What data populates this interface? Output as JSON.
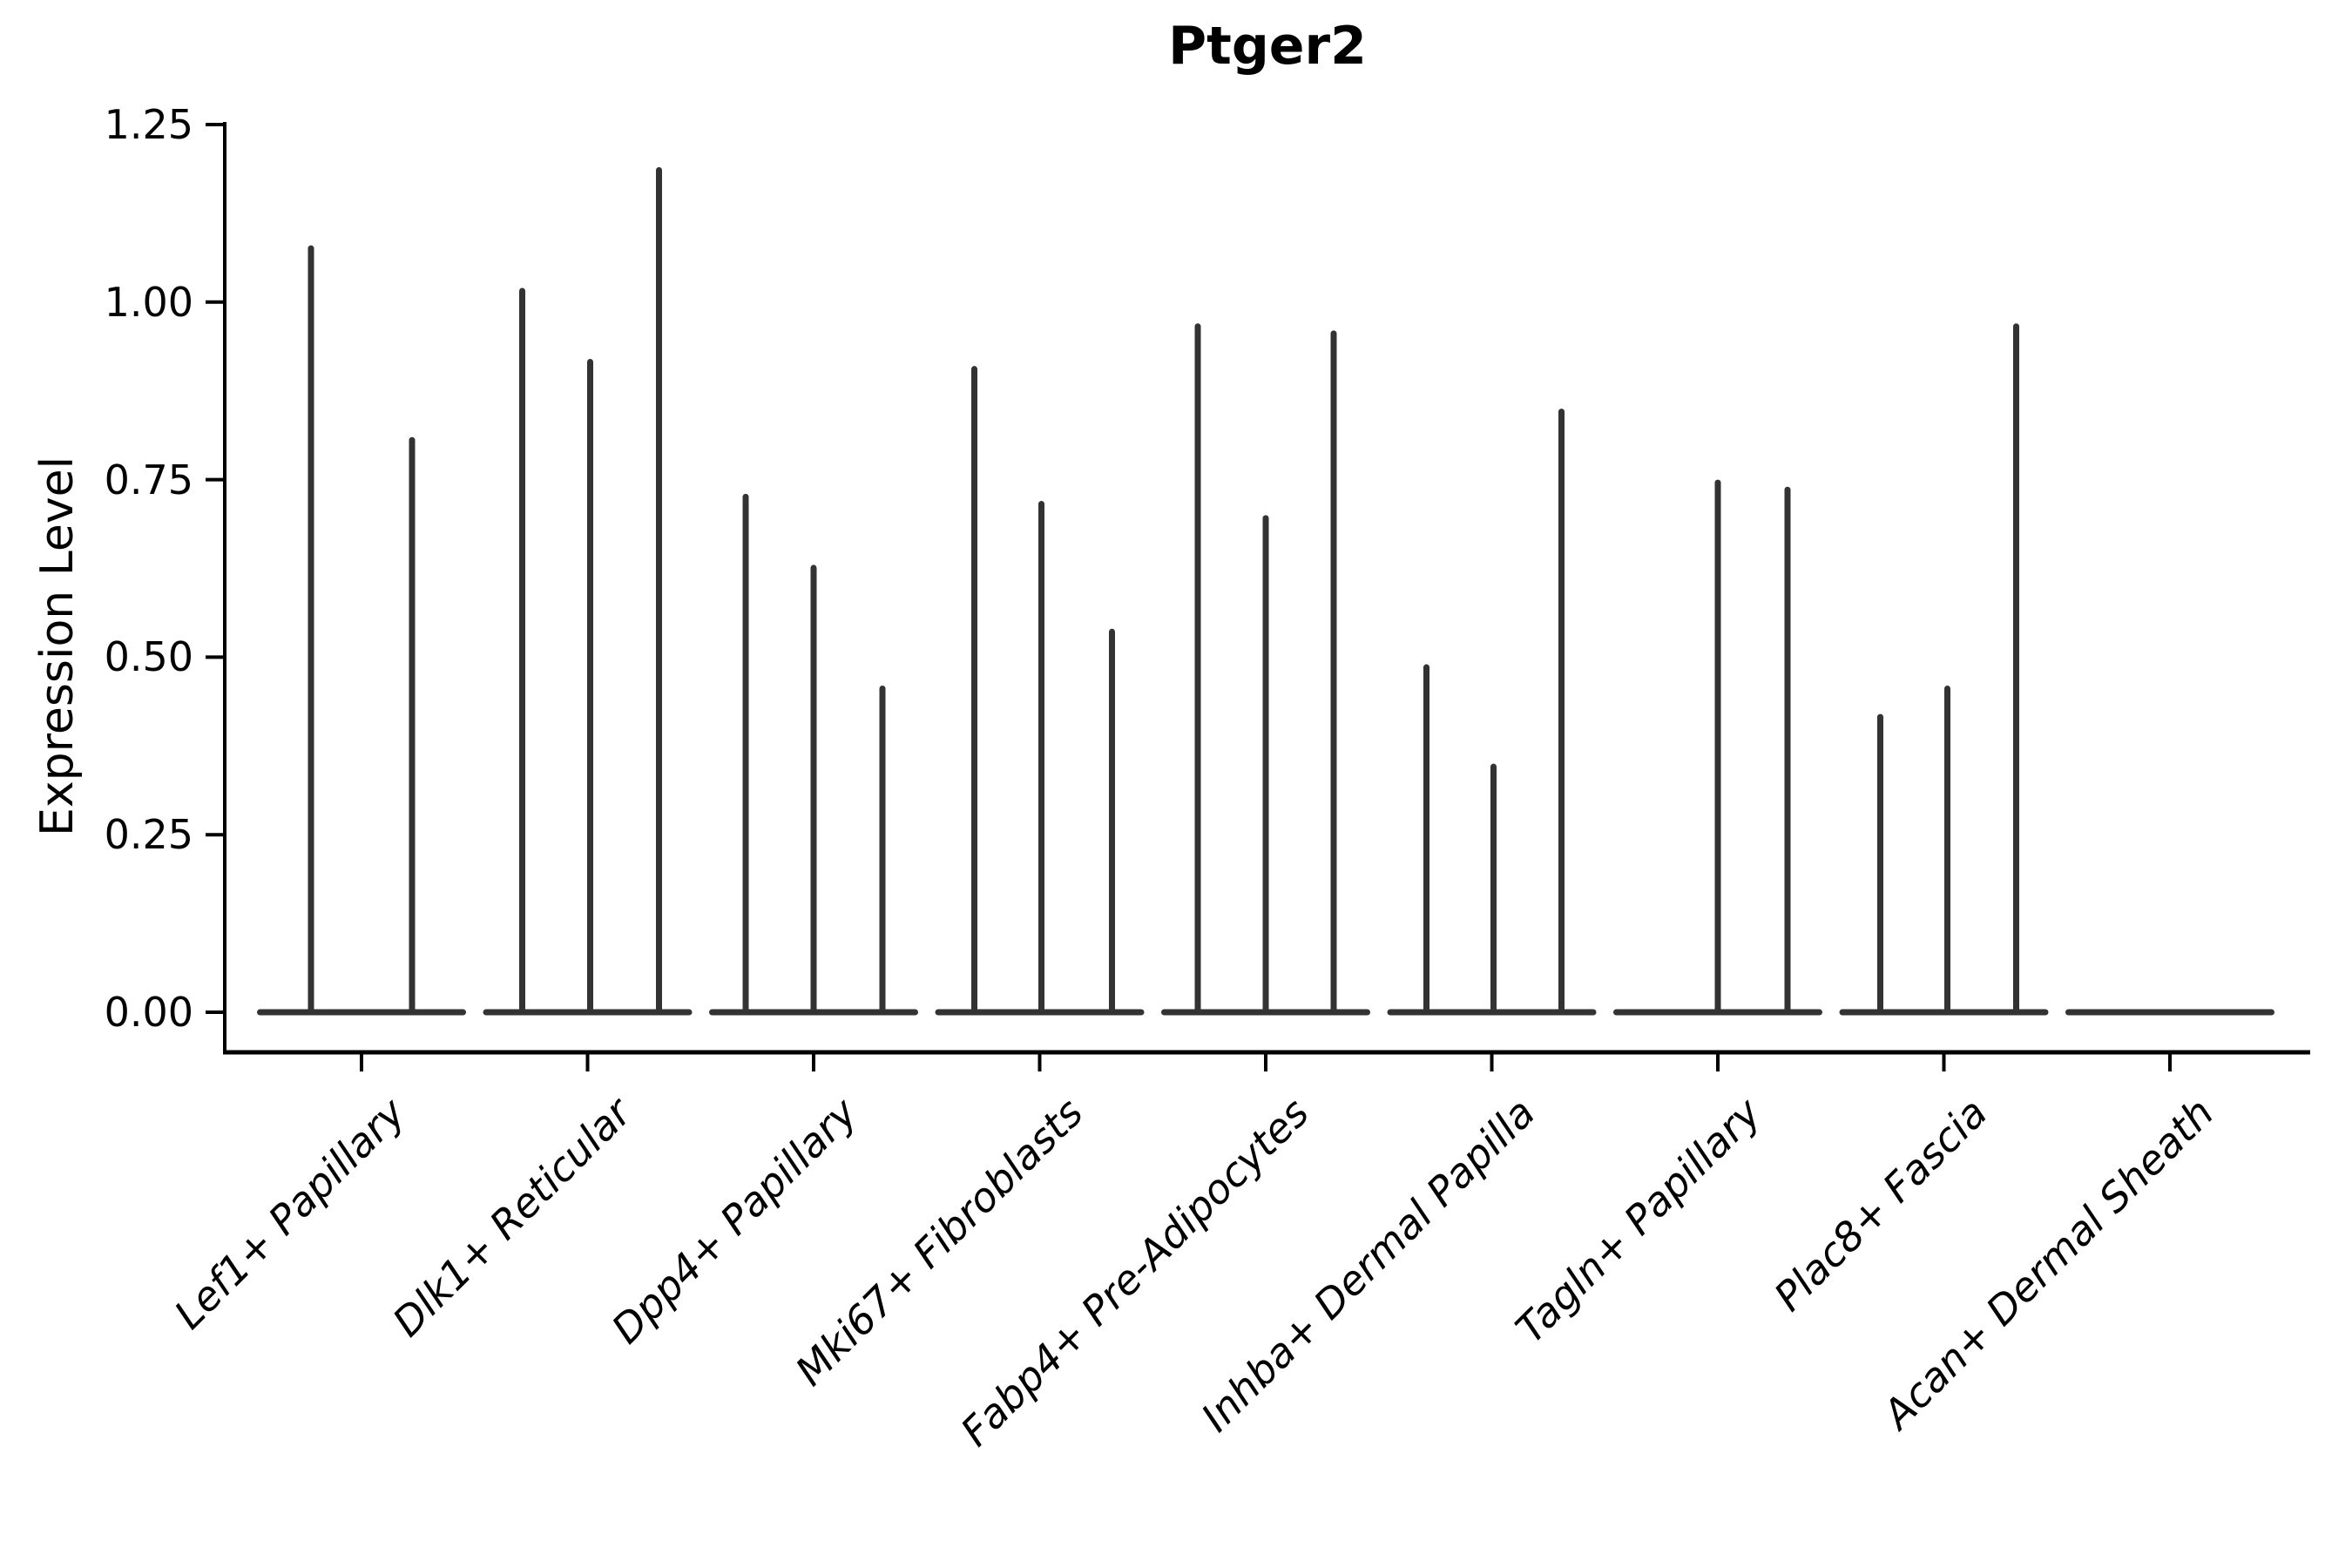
{
  "chart_data": {
    "type": "violin",
    "title": "Ptger2",
    "ylabel": "Expression Level",
    "xlabel": "",
    "ylim": [
      0,
      1.25
    ],
    "yticks": [
      "0.00",
      "0.25",
      "0.50",
      "0.75",
      "1.00",
      "1.25"
    ],
    "grid": false,
    "legend": "none",
    "background": "#ffffff",
    "colors": {
      "violin": "#333333",
      "axis": "#000000",
      "text": "#000000"
    },
    "categories": [
      "Lef1+ Papillary",
      "Dlk1+ Reticular",
      "Dpp4+ Papillary",
      "Mki67+ Fibroblasts",
      "Fabp4+ Pre-Adipocytes",
      "Inhba+ Dermal Papilla",
      "Tagln+ Papillary",
      "Plac8+ Fascia",
      "Acan+ Dermal Sheath"
    ],
    "description": "Needle-thin violin plot of Ptger2 expression; each category shows a flat density line at 0 plus thin spikes reaching the expression level of rare expressing cells. dx = horizontal offset (px) of each spike from the category center.",
    "series": [
      {
        "category": "Lef1+ Papillary",
        "spikes": [
          {
            "dx": -58,
            "value": 1.08
          },
          {
            "dx": 58,
            "value": 0.81
          }
        ]
      },
      {
        "category": "Dlk1+ Reticular",
        "spikes": [
          {
            "dx": -75,
            "value": 1.02
          },
          {
            "dx": 3,
            "value": 0.92
          },
          {
            "dx": 82,
            "value": 1.19
          }
        ]
      },
      {
        "category": "Dpp4+ Papillary",
        "spikes": [
          {
            "dx": -78,
            "value": 0.73
          },
          {
            "dx": 0,
            "value": 0.63
          },
          {
            "dx": 79,
            "value": 0.46
          }
        ]
      },
      {
        "category": "Mki67+ Fibroblasts",
        "spikes": [
          {
            "dx": -75,
            "value": 0.91
          },
          {
            "dx": 2,
            "value": 0.72
          },
          {
            "dx": 83,
            "value": 0.54
          }
        ]
      },
      {
        "category": "Fabp4+ Pre-Adipocytes",
        "spikes": [
          {
            "dx": -78,
            "value": 0.97
          },
          {
            "dx": 0,
            "value": 0.7
          },
          {
            "dx": 78,
            "value": 0.96
          }
        ]
      },
      {
        "category": "Inhba+ Dermal Papilla",
        "spikes": [
          {
            "dx": -75,
            "value": 0.49
          },
          {
            "dx": 2,
            "value": 0.35
          },
          {
            "dx": 80,
            "value": 0.85
          }
        ]
      },
      {
        "category": "Tagln+ Papillary",
        "spikes": [
          {
            "dx": 0,
            "value": 0.75
          },
          {
            "dx": 80,
            "value": 0.74
          }
        ]
      },
      {
        "category": "Plac8+ Fascia",
        "spikes": [
          {
            "dx": -73,
            "value": 0.42
          },
          {
            "dx": 4,
            "value": 0.46
          },
          {
            "dx": 83,
            "value": 0.97
          }
        ]
      },
      {
        "category": "Acan+ Dermal Sheath",
        "spikes": []
      }
    ]
  }
}
